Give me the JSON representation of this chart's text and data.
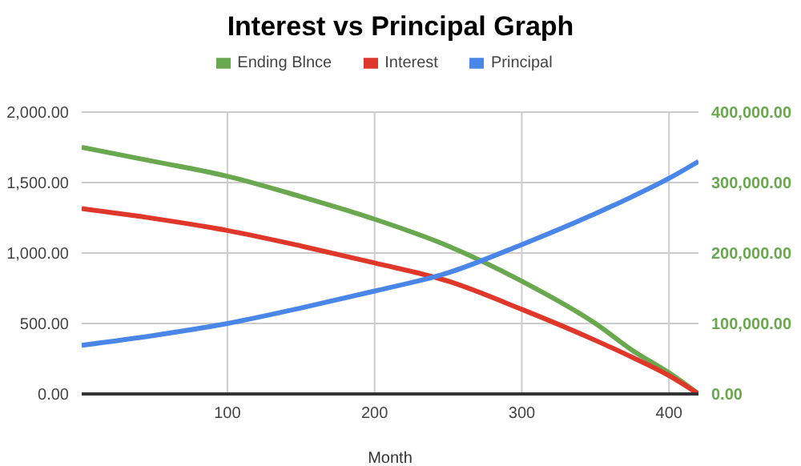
{
  "chart_data": {
    "type": "line",
    "title": "Interest vs Principal Graph",
    "xlabel": "Month",
    "x": [
      1,
      50,
      100,
      150,
      200,
      250,
      300,
      350,
      375,
      400,
      420
    ],
    "series": [
      {
        "name": "Ending Blnce",
        "color": "#6aa84f",
        "axis": "y2",
        "values": [
          350000,
          330000,
          309000,
          280000,
          248000,
          210000,
          160000,
          100000,
          62000,
          30000,
          0
        ]
      },
      {
        "name": "Interest",
        "color": "#e0372b",
        "values": [
          1315,
          1245,
          1160,
          1050,
          930,
          800,
          600,
          380,
          260,
          130,
          0
        ]
      },
      {
        "name": "Principal",
        "color": "#4a86e8",
        "values": [
          345,
          415,
          500,
          610,
          730,
          860,
          1060,
          1280,
          1400,
          1530,
          1650
        ]
      }
    ],
    "xlim": [
      1,
      420
    ],
    "xticks": [
      100,
      200,
      300,
      400
    ],
    "ylim": [
      0,
      2000
    ],
    "yticks": [
      {
        "value": 0,
        "label": "0.00"
      },
      {
        "value": 500,
        "label": "500.00"
      },
      {
        "value": 1000,
        "label": "1,000.00"
      },
      {
        "value": 1500,
        "label": "1,500.00"
      },
      {
        "value": 2000,
        "label": "2,000.00"
      }
    ],
    "y2lim": [
      0,
      400000
    ],
    "y2ticks": [
      {
        "value": 0,
        "label": "0.00"
      },
      {
        "value": 100000,
        "label": "100,000.00"
      },
      {
        "value": 200000,
        "label": "200,000.00"
      },
      {
        "value": 300000,
        "label": "300,000.00"
      },
      {
        "value": 400000,
        "label": "400,000.00"
      }
    ],
    "grid": true,
    "legend": "top",
    "marker": "none",
    "line_style": "solid"
  }
}
